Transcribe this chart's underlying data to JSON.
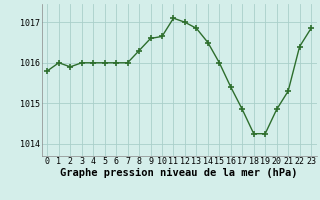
{
  "x": [
    0,
    1,
    2,
    3,
    4,
    5,
    6,
    7,
    8,
    9,
    10,
    11,
    12,
    13,
    14,
    15,
    16,
    17,
    18,
    19,
    20,
    21,
    22,
    23
  ],
  "y": [
    1015.8,
    1016.0,
    1015.9,
    1016.0,
    1016.0,
    1016.0,
    1016.0,
    1016.0,
    1016.3,
    1016.6,
    1016.65,
    1017.1,
    1017.0,
    1016.85,
    1016.5,
    1016.0,
    1015.4,
    1014.85,
    1014.25,
    1014.25,
    1014.85,
    1015.3,
    1016.4,
    1016.85
  ],
  "line_color": "#2d6e2d",
  "marker_color": "#2d6e2d",
  "bg_color": "#d4eeea",
  "grid_color": "#aacfca",
  "xlabel": "Graphe pression niveau de la mer (hPa)",
  "ylim_min": 1013.7,
  "ylim_max": 1017.45,
  "yticks": [
    1014,
    1015,
    1016,
    1017
  ],
  "xticks": [
    0,
    1,
    2,
    3,
    4,
    5,
    6,
    7,
    8,
    9,
    10,
    11,
    12,
    13,
    14,
    15,
    16,
    17,
    18,
    19,
    20,
    21,
    22,
    23
  ],
  "xlabel_fontsize": 7.5,
  "tick_fontsize": 6.0
}
